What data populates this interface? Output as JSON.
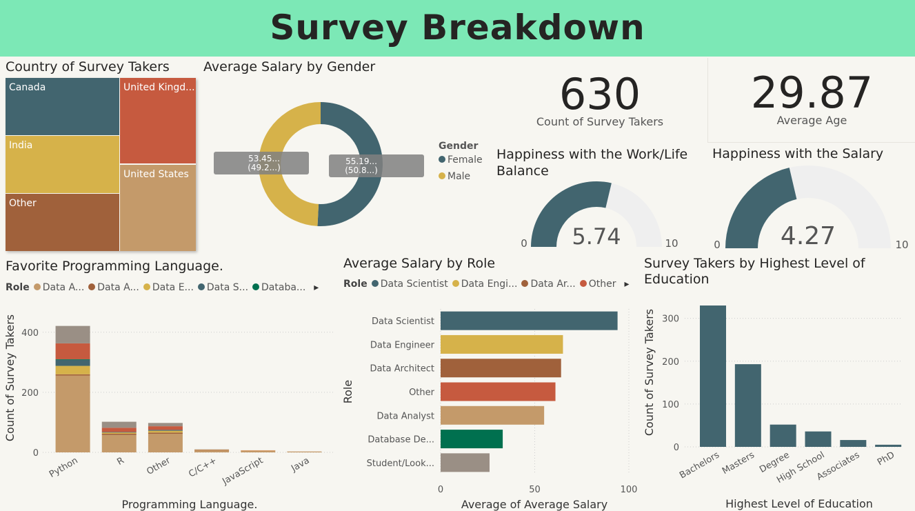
{
  "header": {
    "title": "Survey Breakdown"
  },
  "colors": {
    "slate": "#42656f",
    "gold": "#d6b24a",
    "brown": "#a0613b",
    "rust": "#c65a3f",
    "tan": "#c49a6a",
    "green": "#00704f",
    "gray": "#9a8f85",
    "track": "#efefef"
  },
  "cards": {
    "count": {
      "value": "630",
      "label": "Count of Survey Takers"
    },
    "age": {
      "value": "29.87",
      "label": "Average Age"
    }
  },
  "chart_data": [
    {
      "id": "country",
      "type": "treemap",
      "title": "Country of Survey Takers",
      "cells": [
        {
          "label": "Canada",
          "color": "#42656f"
        },
        {
          "label": "United Kingd...",
          "color": "#c65a3f"
        },
        {
          "label": "India",
          "color": "#d6b24a"
        },
        {
          "label": "United States",
          "color": "#c49a6a"
        },
        {
          "label": "Other",
          "color": "#a0613b"
        }
      ]
    },
    {
      "id": "gender",
      "type": "pie",
      "title": "Average Salary by Gender",
      "legend_title": "Gender",
      "slices": [
        {
          "name": "Female",
          "value": 55.19,
          "label": "55.19...",
          "pct_label": "(50.8...)",
          "color": "#42656f"
        },
        {
          "name": "Male",
          "value": 53.45,
          "label": "53.45...",
          "pct_label": "(49.2...)",
          "color": "#d6b24a"
        }
      ]
    },
    {
      "id": "worklife",
      "type": "gauge",
      "title": "Happiness with the Work/Life Balance",
      "title_lines": [
        "Happiness with the Work/Life",
        "Balance"
      ],
      "value": 5.74,
      "value_label": "5.74",
      "min": 0,
      "max": 10,
      "min_label": "0",
      "max_label": "10"
    },
    {
      "id": "salaryhappy",
      "type": "gauge",
      "title": "Happiness with the Salary",
      "value": 4.27,
      "value_label": "4.27",
      "min": 0,
      "max": 10,
      "min_label": "0",
      "max_label": "10"
    },
    {
      "id": "language",
      "type": "bar",
      "stacked": true,
      "title": "Favorite Programming Language.",
      "legend_title": "Role",
      "legend_items": [
        {
          "label": "Data A...",
          "color": "#c49a6a"
        },
        {
          "label": "Data A...",
          "color": "#a0613b"
        },
        {
          "label": "Data E...",
          "color": "#d6b24a"
        },
        {
          "label": "Data S...",
          "color": "#42656f"
        },
        {
          "label": "Databa...",
          "color": "#00704f"
        }
      ],
      "xlabel": "Programming Language.",
      "ylabel": "Count of Survey Takers",
      "ylim": [
        0,
        450
      ],
      "yticks": [
        0,
        200,
        400
      ],
      "ytick_labels": [
        "0",
        "200",
        "400"
      ],
      "categories": [
        "Python",
        "R",
        "Other",
        "C/C++",
        "JavaScript",
        "Java"
      ],
      "series": [
        {
          "color": "#c49a6a",
          "values": [
            256,
            58,
            62,
            6,
            5,
            3
          ]
        },
        {
          "color": "#a0613b",
          "values": [
            4,
            4,
            4,
            1,
            0,
            0
          ]
        },
        {
          "color": "#d6b24a",
          "values": [
            28,
            4,
            6,
            1,
            1,
            0
          ]
        },
        {
          "color": "#42656f",
          "values": [
            20,
            2,
            3,
            0,
            0,
            0
          ]
        },
        {
          "color": "#00704f",
          "values": [
            2,
            0,
            0,
            0,
            0,
            0
          ]
        },
        {
          "color": "#c65a3f",
          "values": [
            53,
            14,
            12,
            1,
            1,
            0
          ]
        },
        {
          "color": "#9a8f85",
          "values": [
            58,
            20,
            11,
            1,
            0,
            0
          ]
        }
      ]
    },
    {
      "id": "role",
      "type": "bar",
      "orientation": "horizontal",
      "title": "Average Salary by Role",
      "legend_title": "Role",
      "legend_items": [
        {
          "label": "Data Scientist",
          "color": "#42656f"
        },
        {
          "label": "Data Engi...",
          "color": "#d6b24a"
        },
        {
          "label": "Data Ar...",
          "color": "#a0613b"
        },
        {
          "label": "Other",
          "color": "#c65a3f"
        }
      ],
      "xlabel": "Average of Average Salary",
      "ylabel": "Role",
      "xlim": [
        0,
        100
      ],
      "xticks": [
        0,
        50,
        100
      ],
      "xtick_labels": [
        "0",
        "50",
        "100"
      ],
      "categories": [
        "Data Scientist",
        "Data Engineer",
        "Data Architect",
        "Other",
        "Data Analyst",
        "Database De...",
        "Student/Look..."
      ],
      "values": [
        94,
        65,
        64,
        61,
        55,
        33,
        26
      ],
      "colors": [
        "#42656f",
        "#d6b24a",
        "#a0613b",
        "#c65a3f",
        "#c49a6a",
        "#00704f",
        "#9a8f85"
      ]
    },
    {
      "id": "education",
      "type": "bar",
      "title": "Survey Takers by Highest Level of Education",
      "title_lines": [
        "Survey Takers by Highest Level of",
        "Education"
      ],
      "xlabel": "Highest Level of Education",
      "ylabel": "Count of Survey Takers",
      "ylim": [
        0,
        330
      ],
      "yticks": [
        0,
        100,
        200,
        300
      ],
      "ytick_labels": [
        "0",
        "100",
        "200",
        "300"
      ],
      "categories": [
        "Bachelors",
        "Masters",
        "Degree",
        "High School",
        "Associates",
        "PhD"
      ],
      "values": [
        330,
        193,
        52,
        36,
        16,
        5
      ],
      "color": "#42656f"
    }
  ]
}
